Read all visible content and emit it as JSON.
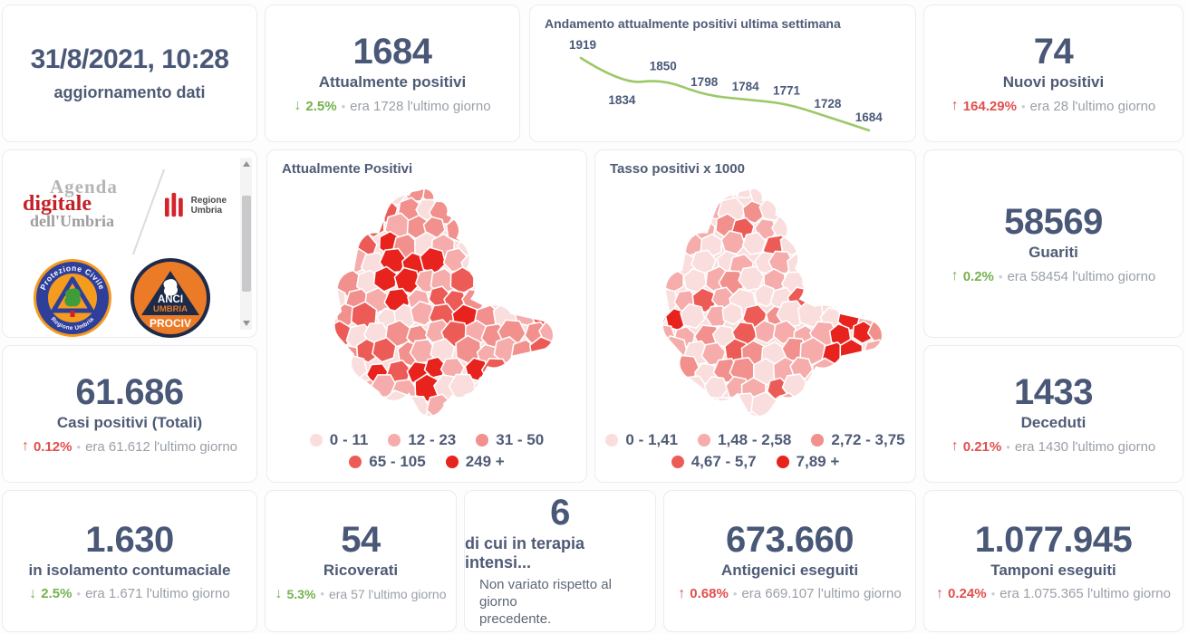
{
  "kpis": {
    "updated": {
      "value": "31/8/2021, 10:28",
      "label": "aggiornamento dati"
    },
    "attualmente": {
      "value": "1684",
      "label": "Attualmente positivi",
      "arrow": "↓",
      "pct": "2.5%",
      "dot": "•",
      "note": "era 1728 l'ultimo giorno",
      "trend": "green"
    },
    "nuovi": {
      "value": "74",
      "label": "Nuovi positivi",
      "arrow": "↑",
      "pct": "164.29%",
      "dot": "•",
      "note": "era 28 l'ultimo giorno",
      "trend": "red"
    },
    "guariti": {
      "value": "58569",
      "label": "Guariti",
      "arrow": "↑",
      "pct": "0.2%",
      "dot": "•",
      "note": "era 58454 l'ultimo giorno",
      "trend": "green"
    },
    "casi": {
      "value": "61.686",
      "label": "Casi positivi (Totali)",
      "arrow": "↑",
      "pct": "0.12%",
      "dot": "•",
      "note": "era 61.612 l'ultimo giorno",
      "trend": "red"
    },
    "deceduti": {
      "value": "1433",
      "label": "Deceduti",
      "arrow": "↑",
      "pct": "0.21%",
      "dot": "•",
      "note": "era 1430 l'ultimo giorno",
      "trend": "red"
    },
    "isolamento": {
      "value": "1.630",
      "label": "in isolamento contumaciale",
      "arrow": "↓",
      "pct": "2.5%",
      "dot": "•",
      "note": "era 1.671 l'ultimo giorno",
      "trend": "green"
    },
    "ricoverati": {
      "value": "54",
      "label": "Ricoverati",
      "arrow": "↓",
      "pct": "5.3%",
      "dot": "•",
      "note": "era 57 l'ultimo giorno",
      "trend": "green"
    },
    "terapia": {
      "value": "6",
      "label": "di cui in terapia intensi...",
      "note_line1": "Non variato rispetto al giorno",
      "note_line2": "precedente."
    },
    "antigenici": {
      "value": "673.660",
      "label": "Antigenici eseguiti",
      "arrow": "↑",
      "pct": "0.68%",
      "dot": "•",
      "note": "era 669.107 l'ultimo giorno",
      "trend": "red"
    },
    "tamponi": {
      "value": "1.077.945",
      "label": "Tamponi eseguiti",
      "arrow": "↑",
      "pct": "0.24%",
      "dot": "•",
      "note": "era 1.075.365 l'ultimo giorno",
      "trend": "red"
    }
  },
  "chart_data": [
    {
      "type": "line",
      "title": "Andamento attualmente positivi ultima settimana",
      "x": [
        1,
        2,
        3,
        4,
        5,
        6,
        7,
        8
      ],
      "series": [
        {
          "name": "attualmente positivi ultima settimana",
          "values": [
            1919,
            1834,
            1850,
            1798,
            1784,
            1771,
            1728,
            1684
          ]
        }
      ],
      "line_color": "#9cc868",
      "label_color": "#4a5878",
      "data_labels": true,
      "axes": "hidden",
      "ylim": [
        1660,
        1940
      ]
    },
    {
      "type": "choropleth_map",
      "title": "Attualmente Positivi",
      "region": "Umbria (comuni)",
      "classes": [
        "0 - 11",
        "12 - 23",
        "31 - 50",
        "65 - 105",
        "249 +"
      ],
      "palette": [
        "#fadddd",
        "#f5acab",
        "#f1908c",
        "#ec5b56",
        "#e8221c"
      ],
      "legend_position": "bottom"
    },
    {
      "type": "choropleth_map",
      "title": "Tasso positivi x 1000",
      "region": "Umbria (comuni)",
      "classes": [
        "0 - 1,41",
        "1,48 - 2,58",
        "2,72 - 3,75",
        "4,67 - 5,7",
        "7,89 +"
      ],
      "palette": [
        "#fadddd",
        "#f5acab",
        "#f1908c",
        "#ec5b56",
        "#e8221c"
      ],
      "legend_position": "bottom"
    }
  ],
  "logos": {
    "agenda": {
      "l1": "Agenda",
      "l2": "digitale",
      "l3": "dell'Umbria"
    },
    "regione_label": "Regione Umbria",
    "prociv_top": "Protezione Civile",
    "prociv_bottom": "Regione Umbria",
    "anci_l1": "ANCI",
    "anci_l2": "UMBRIA",
    "anci_l3": "PROCIV"
  },
  "colors": {
    "number": "#4a5878",
    "label": "#4f5b76",
    "muted": "#9aa0a8",
    "good": "#76b24e",
    "bad": "#e0504d",
    "line": "#9cc868"
  }
}
